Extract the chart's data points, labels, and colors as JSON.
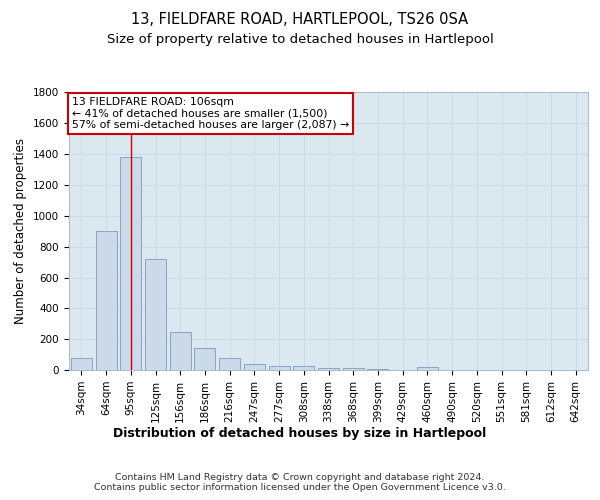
{
  "title": "13, FIELDFARE ROAD, HARTLEPOOL, TS26 0SA",
  "subtitle": "Size of property relative to detached houses in Hartlepool",
  "xlabel": "Distribution of detached houses by size in Hartlepool",
  "ylabel": "Number of detached properties",
  "categories": [
    "34sqm",
    "64sqm",
    "95sqm",
    "125sqm",
    "156sqm",
    "186sqm",
    "216sqm",
    "247sqm",
    "277sqm",
    "308sqm",
    "338sqm",
    "368sqm",
    "399sqm",
    "429sqm",
    "460sqm",
    "490sqm",
    "520sqm",
    "551sqm",
    "581sqm",
    "612sqm",
    "642sqm"
  ],
  "values": [
    75,
    900,
    1380,
    720,
    245,
    145,
    75,
    40,
    25,
    25,
    15,
    10,
    5,
    0,
    20,
    0,
    0,
    0,
    0,
    0,
    0
  ],
  "bar_color": "#ccd9e8",
  "bar_edge_color": "#7a9bbf",
  "grid_color": "#c8d8e8",
  "bg_color": "#dce8f0",
  "annotation_text": "13 FIELDFARE ROAD: 106sqm\n← 41% of detached houses are smaller (1,500)\n57% of semi-detached houses are larger (2,087) →",
  "annotation_box_color": "#ffffff",
  "annotation_box_edge": "#cc0000",
  "vline_x_index": 2,
  "vline_color": "#cc0000",
  "ylim": [
    0,
    1800
  ],
  "yticks": [
    0,
    200,
    400,
    600,
    800,
    1000,
    1200,
    1400,
    1600,
    1800
  ],
  "title_fontsize": 10.5,
  "subtitle_fontsize": 9.5,
  "xlabel_fontsize": 9,
  "ylabel_fontsize": 8.5,
  "tick_fontsize": 7.5,
  "ann_fontsize": 7.8,
  "footer_text": "Contains HM Land Registry data © Crown copyright and database right 2024.\nContains public sector information licensed under the Open Government Licence v3.0.",
  "footer_fontsize": 6.8
}
